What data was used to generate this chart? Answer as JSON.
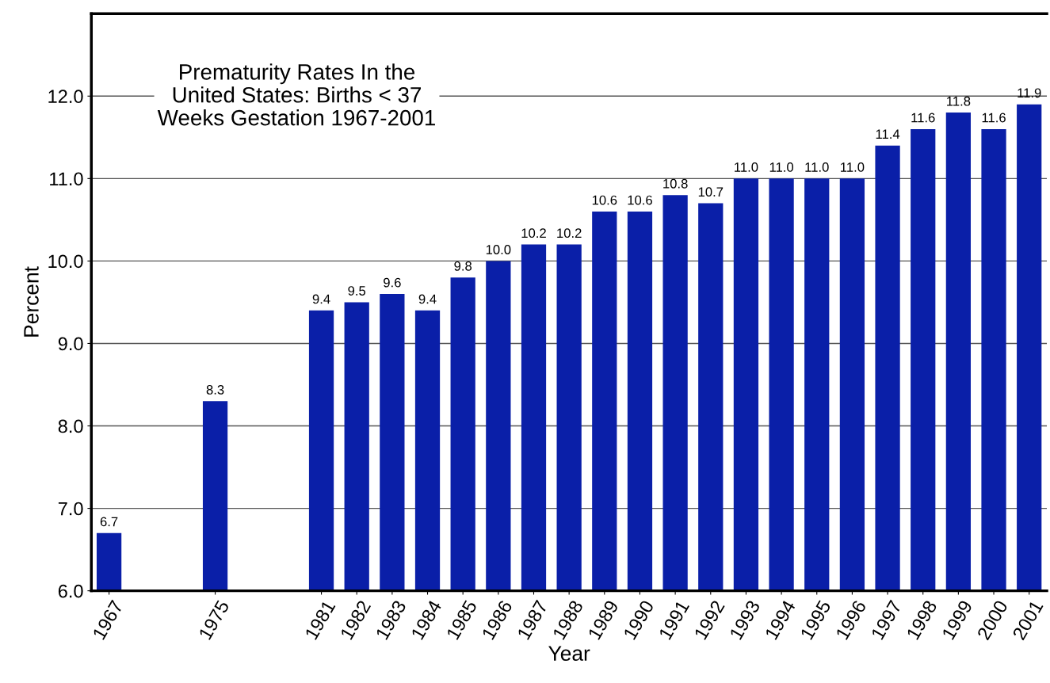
{
  "chart_data": {
    "type": "bar",
    "title": "Prematurity Rates In the\nUnited States: Births < 37\nWeeks Gestation 1967-2001",
    "xlabel": "Year",
    "ylabel": "Percent",
    "categories": [
      "1967",
      null,
      null,
      "1975",
      null,
      null,
      "1981",
      "1982",
      "1983",
      "1984",
      "1985",
      "1986",
      "1987",
      "1988",
      "1989",
      "1990",
      "1991",
      "1992",
      "1993",
      "1994",
      "1995",
      "1996",
      "1997",
      "1998",
      "1999",
      "2000",
      "2001"
    ],
    "values": [
      6.7,
      null,
      null,
      8.3,
      null,
      null,
      9.4,
      9.5,
      9.6,
      9.4,
      9.8,
      10.0,
      10.2,
      10.2,
      10.6,
      10.6,
      10.8,
      10.7,
      11.0,
      11.0,
      11.0,
      11.0,
      11.4,
      11.6,
      11.8,
      11.6,
      11.9
    ],
    "value_labels": [
      "6.7",
      null,
      null,
      "8.3",
      null,
      null,
      "9.4",
      "9.5",
      "9.6",
      "9.4",
      "9.8",
      "10.0",
      "10.2",
      "10.2",
      "10.6",
      "10.6",
      "10.8",
      "10.7",
      "11.0",
      "11.0",
      "11.0",
      "11.0",
      "11.4",
      "11.6",
      "11.8",
      "11.6",
      "11.9"
    ],
    "color": "#0a1fa8",
    "ylim": [
      6,
      13
    ],
    "yticks": [
      {
        "value": 6,
        "label": "6.0"
      },
      {
        "value": 7,
        "label": "7.0"
      },
      {
        "value": 8,
        "label": "8.0"
      },
      {
        "value": 9,
        "label": "9.0"
      },
      {
        "value": 10,
        "label": "10.0"
      },
      {
        "value": 11,
        "label": "11.0"
      },
      {
        "value": 12,
        "label": "12.0"
      }
    ],
    "grid": "y"
  }
}
